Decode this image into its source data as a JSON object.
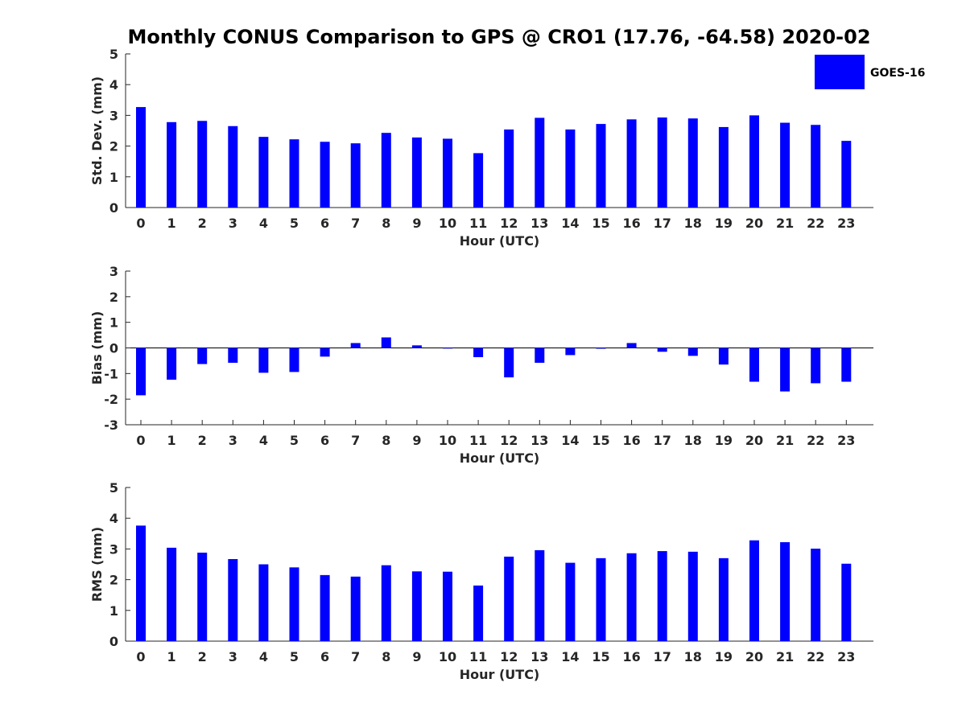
{
  "title": "Monthly CONUS Comparison to GPS @ CRO1 (17.76, -64.58) 2020-02",
  "legend": {
    "label": "GOES-16",
    "color": "#0000ff",
    "placement": "top-right"
  },
  "colors": {
    "bar": "#0000ff",
    "axis": "#262626",
    "background": "#ffffff"
  },
  "chart_data": [
    {
      "type": "bar",
      "title": "Monthly CONUS Comparison to GPS @ CRO1 (17.76, -64.58) 2020-02",
      "xlabel": "Hour (UTC)",
      "ylabel": "Std. Dev. (mm)",
      "ylim": [
        0,
        5
      ],
      "yticks": [
        "0",
        "1",
        "2",
        "3",
        "4",
        "5"
      ],
      "categories": [
        "0",
        "1",
        "2",
        "3",
        "4",
        "5",
        "6",
        "7",
        "8",
        "9",
        "10",
        "11",
        "12",
        "13",
        "14",
        "15",
        "16",
        "17",
        "18",
        "19",
        "20",
        "21",
        "22",
        "23"
      ],
      "series": [
        {
          "name": "GOES-16",
          "values": [
            3.27,
            2.78,
            2.82,
            2.65,
            2.3,
            2.22,
            2.14,
            2.09,
            2.43,
            2.28,
            2.24,
            1.77,
            2.54,
            2.92,
            2.54,
            2.72,
            2.87,
            2.93,
            2.9,
            2.62,
            3.0,
            2.76,
            2.69,
            2.17
          ]
        }
      ],
      "grid": false
    },
    {
      "type": "bar",
      "xlabel": "Hour (UTC)",
      "ylabel": "Bias (mm)",
      "ylim": [
        -3,
        3
      ],
      "yticks": [
        "-3",
        "-2",
        "-1",
        "0",
        "1",
        "2",
        "3"
      ],
      "categories": [
        "0",
        "1",
        "2",
        "3",
        "4",
        "5",
        "6",
        "7",
        "8",
        "9",
        "10",
        "11",
        "12",
        "13",
        "14",
        "15",
        "16",
        "17",
        "18",
        "19",
        "20",
        "21",
        "22",
        "23"
      ],
      "series": [
        {
          "name": "GOES-16",
          "values": [
            -1.85,
            -1.24,
            -0.63,
            -0.58,
            -0.97,
            -0.94,
            -0.34,
            0.19,
            0.41,
            0.1,
            -0.01,
            -0.36,
            -1.15,
            -0.58,
            -0.28,
            -0.03,
            0.19,
            -0.15,
            -0.31,
            -0.65,
            -1.32,
            -1.7,
            -1.38,
            -1.32
          ]
        }
      ],
      "grid": false
    },
    {
      "type": "bar",
      "xlabel": "Hour (UTC)",
      "ylabel": "RMS (mm)",
      "ylim": [
        0,
        5
      ],
      "yticks": [
        "0",
        "1",
        "2",
        "3",
        "4",
        "5"
      ],
      "categories": [
        "0",
        "1",
        "2",
        "3",
        "4",
        "5",
        "6",
        "7",
        "8",
        "9",
        "10",
        "11",
        "12",
        "13",
        "14",
        "15",
        "16",
        "17",
        "18",
        "19",
        "20",
        "21",
        "22",
        "23"
      ],
      "series": [
        {
          "name": "GOES-16",
          "values": [
            3.76,
            3.04,
            2.88,
            2.67,
            2.5,
            2.4,
            2.15,
            2.1,
            2.47,
            2.27,
            2.26,
            1.81,
            2.75,
            2.96,
            2.55,
            2.7,
            2.86,
            2.93,
            2.91,
            2.7,
            3.28,
            3.22,
            3.01,
            2.52
          ]
        }
      ],
      "grid": false
    }
  ]
}
